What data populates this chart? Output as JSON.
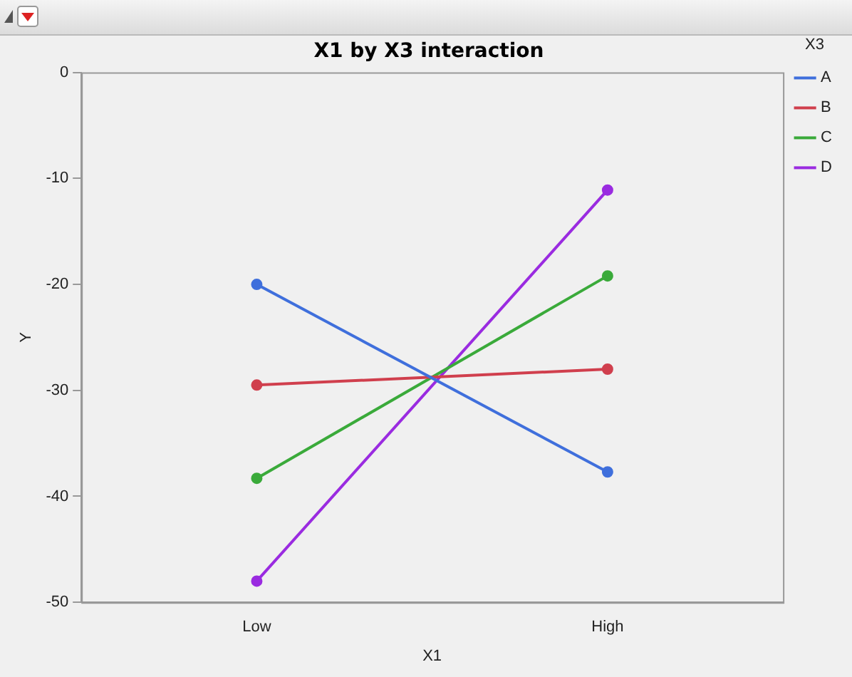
{
  "chart_data": {
    "type": "line",
    "title": "X1 by X3 interaction",
    "xlabel": "X1",
    "ylabel": "Y",
    "legend_title": "X3",
    "categories": [
      "Low",
      "High"
    ],
    "series": [
      {
        "name": "A",
        "color": "#3f6fdc",
        "values": [
          -20,
          -37.7
        ]
      },
      {
        "name": "B",
        "color": "#d03f4d",
        "values": [
          -29.5,
          -28
        ]
      },
      {
        "name": "C",
        "color": "#3aaa3a",
        "values": [
          -38.3,
          -19.2
        ]
      },
      {
        "name": "D",
        "color": "#9a2be0",
        "values": [
          -48,
          -11.1
        ]
      }
    ],
    "ylim": [
      -50,
      0
    ],
    "yticks": [
      -50,
      -40,
      -30,
      -20,
      -10,
      0
    ],
    "grid": false,
    "legend": "right",
    "marker": "circle",
    "line_style": "solid"
  }
}
